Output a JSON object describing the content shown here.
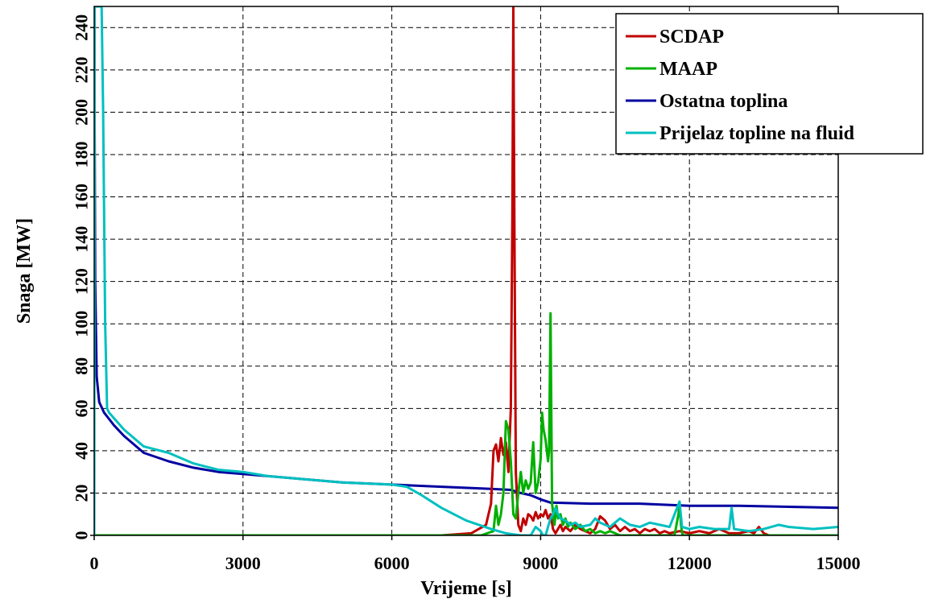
{
  "chart_data": {
    "type": "line",
    "xlabel": "Vrijeme [s]",
    "ylabel": "Snaga [MW]",
    "xlim": [
      0,
      15000
    ],
    "ylim": [
      0,
      250
    ],
    "xticks": [
      0,
      3000,
      6000,
      9000,
      12000,
      15000
    ],
    "yticks": [
      0,
      20,
      40,
      60,
      80,
      100,
      120,
      140,
      160,
      180,
      200,
      220,
      240
    ],
    "grid": true,
    "legend_position": "top-right",
    "series": [
      {
        "name": "SCDAP",
        "color": "#c00000",
        "points": [
          [
            0,
            0
          ],
          [
            7000,
            0
          ],
          [
            7600,
            1
          ],
          [
            7900,
            5
          ],
          [
            8000,
            15
          ],
          [
            8050,
            40
          ],
          [
            8100,
            43
          ],
          [
            8150,
            35
          ],
          [
            8200,
            46
          ],
          [
            8250,
            38
          ],
          [
            8300,
            44
          ],
          [
            8350,
            30
          ],
          [
            8400,
            60
          ],
          [
            8430,
            150
          ],
          [
            8450,
            250
          ],
          [
            8470,
            150
          ],
          [
            8500,
            30
          ],
          [
            8550,
            5
          ],
          [
            8600,
            2
          ],
          [
            8650,
            8
          ],
          [
            8700,
            5
          ],
          [
            8750,
            10
          ],
          [
            8800,
            9
          ],
          [
            8850,
            7
          ],
          [
            8900,
            11
          ],
          [
            8950,
            8
          ],
          [
            9000,
            10
          ],
          [
            9050,
            9
          ],
          [
            9100,
            12
          ],
          [
            9150,
            8
          ],
          [
            9200,
            10
          ],
          [
            9250,
            3
          ],
          [
            9300,
            1
          ],
          [
            9400,
            5
          ],
          [
            9450,
            2
          ],
          [
            9500,
            4
          ],
          [
            9600,
            2
          ],
          [
            9700,
            5
          ],
          [
            9800,
            3
          ],
          [
            9900,
            2
          ],
          [
            10000,
            1
          ],
          [
            10100,
            3
          ],
          [
            10200,
            9
          ],
          [
            10300,
            7
          ],
          [
            10400,
            3
          ],
          [
            10500,
            5
          ],
          [
            10600,
            2
          ],
          [
            10700,
            4
          ],
          [
            10800,
            2
          ],
          [
            10900,
            3
          ],
          [
            11000,
            1
          ],
          [
            11100,
            3
          ],
          [
            11200,
            2
          ],
          [
            11300,
            3
          ],
          [
            11400,
            1
          ],
          [
            11500,
            2
          ],
          [
            11600,
            1
          ],
          [
            11800,
            2
          ],
          [
            12000,
            1
          ],
          [
            12200,
            2
          ],
          [
            12400,
            1
          ],
          [
            12600,
            3
          ],
          [
            12800,
            1
          ],
          [
            13000,
            1
          ],
          [
            13200,
            2
          ],
          [
            13300,
            1
          ],
          [
            13400,
            4
          ],
          [
            13500,
            1
          ],
          [
            13600,
            0
          ],
          [
            15000,
            0
          ]
        ]
      },
      {
        "name": "MAAP",
        "color": "#00b000",
        "points": [
          [
            0,
            0
          ],
          [
            7800,
            0
          ],
          [
            8050,
            2
          ],
          [
            8100,
            14
          ],
          [
            8150,
            5
          ],
          [
            8200,
            10
          ],
          [
            8250,
            20
          ],
          [
            8300,
            54
          ],
          [
            8350,
            50
          ],
          [
            8400,
            35
          ],
          [
            8450,
            10
          ],
          [
            8500,
            8
          ],
          [
            8550,
            20
          ],
          [
            8600,
            30
          ],
          [
            8650,
            20
          ],
          [
            8700,
            26
          ],
          [
            8750,
            22
          ],
          [
            8800,
            25
          ],
          [
            8850,
            44
          ],
          [
            8900,
            20
          ],
          [
            8950,
            25
          ],
          [
            9000,
            36
          ],
          [
            9030,
            58
          ],
          [
            9060,
            50
          ],
          [
            9100,
            45
          ],
          [
            9150,
            35
          ],
          [
            9170,
            40
          ],
          [
            9200,
            105
          ],
          [
            9230,
            15
          ],
          [
            9280,
            5
          ],
          [
            9320,
            14
          ],
          [
            9350,
            8
          ],
          [
            9400,
            10
          ],
          [
            9450,
            5
          ],
          [
            9500,
            8
          ],
          [
            9550,
            4
          ],
          [
            9600,
            6
          ],
          [
            9700,
            3
          ],
          [
            9800,
            5
          ],
          [
            9900,
            2
          ],
          [
            10000,
            3
          ],
          [
            10100,
            1
          ],
          [
            10200,
            2
          ],
          [
            10300,
            1
          ],
          [
            10400,
            2
          ],
          [
            10500,
            1
          ],
          [
            10600,
            0
          ],
          [
            11000,
            0
          ],
          [
            11400,
            0
          ],
          [
            11700,
            0
          ],
          [
            11780,
            10
          ],
          [
            11800,
            16
          ],
          [
            11830,
            5
          ],
          [
            11860,
            0
          ],
          [
            12000,
            0
          ],
          [
            15000,
            0
          ]
        ]
      },
      {
        "name": "Ostatna toplina",
        "color": "#0000a0",
        "points": [
          [
            0,
            250
          ],
          [
            20,
            120
          ],
          [
            50,
            75
          ],
          [
            100,
            63
          ],
          [
            200,
            58
          ],
          [
            300,
            55
          ],
          [
            400,
            52
          ],
          [
            600,
            47
          ],
          [
            1000,
            39
          ],
          [
            1500,
            35
          ],
          [
            2000,
            32
          ],
          [
            2500,
            30
          ],
          [
            3000,
            29
          ],
          [
            3500,
            28
          ],
          [
            4000,
            27
          ],
          [
            5000,
            25
          ],
          [
            6000,
            24
          ],
          [
            7000,
            23
          ],
          [
            8000,
            22
          ],
          [
            8400,
            21.5
          ],
          [
            8600,
            20
          ],
          [
            8800,
            19
          ],
          [
            9000,
            17
          ],
          [
            9200,
            15.5
          ],
          [
            10000,
            15
          ],
          [
            11000,
            15
          ],
          [
            12000,
            14
          ],
          [
            13000,
            14
          ],
          [
            14000,
            13.5
          ],
          [
            15000,
            13
          ]
        ]
      },
      {
        "name": "Prijelaz topline na fluid",
        "color": "#00c0c0",
        "points": [
          [
            0,
            0
          ],
          [
            10,
            250
          ],
          [
            150,
            250
          ],
          [
            180,
            200
          ],
          [
            220,
            100
          ],
          [
            260,
            60
          ],
          [
            300,
            58
          ],
          [
            600,
            50
          ],
          [
            1000,
            42
          ],
          [
            1500,
            39
          ],
          [
            2000,
            34
          ],
          [
            2500,
            31
          ],
          [
            3000,
            30
          ],
          [
            3500,
            28
          ],
          [
            4000,
            27
          ],
          [
            5000,
            25
          ],
          [
            6000,
            24
          ],
          [
            6300,
            23
          ],
          [
            6600,
            19
          ],
          [
            7000,
            13
          ],
          [
            7500,
            7
          ],
          [
            8000,
            3
          ],
          [
            8300,
            1
          ],
          [
            8600,
            0
          ],
          [
            8800,
            0
          ],
          [
            8900,
            4
          ],
          [
            9000,
            2
          ],
          [
            9050,
            0
          ],
          [
            9100,
            0
          ],
          [
            9150,
            4
          ],
          [
            9200,
            8
          ],
          [
            9250,
            10
          ],
          [
            9300,
            13
          ],
          [
            9350,
            10
          ],
          [
            9400,
            8
          ],
          [
            9500,
            7
          ],
          [
            9600,
            5
          ],
          [
            9700,
            6
          ],
          [
            9800,
            4
          ],
          [
            10000,
            5
          ],
          [
            10100,
            8
          ],
          [
            10200,
            6
          ],
          [
            10400,
            4
          ],
          [
            10500,
            6
          ],
          [
            10600,
            8
          ],
          [
            10800,
            5
          ],
          [
            11000,
            4
          ],
          [
            11200,
            6
          ],
          [
            11400,
            5
          ],
          [
            11600,
            4
          ],
          [
            11800,
            16
          ],
          [
            11850,
            4
          ],
          [
            12000,
            3
          ],
          [
            12200,
            4
          ],
          [
            12500,
            3
          ],
          [
            12800,
            3
          ],
          [
            12850,
            13
          ],
          [
            12900,
            3
          ],
          [
            13200,
            2
          ],
          [
            13500,
            3
          ],
          [
            13800,
            5
          ],
          [
            14000,
            4
          ],
          [
            14500,
            3
          ],
          [
            15000,
            4
          ]
        ]
      }
    ]
  }
}
